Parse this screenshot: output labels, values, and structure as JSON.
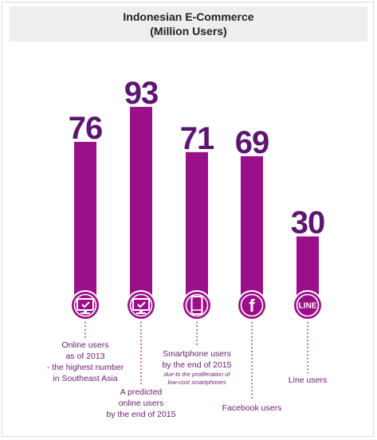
{
  "title": "Indonesian E-Commerce",
  "subtitle": "(Million Users)",
  "colors": {
    "bar": "#9b0f8a",
    "value": "#5c1670",
    "text": "#6a1b6d",
    "icon_ring": "#9b0f8a"
  },
  "chart_data": {
    "type": "bar",
    "title": "Indonesian E-Commerce",
    "subtitle": "(Million Users)",
    "categories": [
      "Online users as of 2013 - the highest number in Southeast Asia",
      "A predicted online users by the end of 2015",
      "Smartphone users by the end of 2015",
      "Facebook users",
      "Line users"
    ],
    "values": [
      76,
      93,
      71,
      69,
      30
    ],
    "unit": "Million Users"
  },
  "bars": [
    {
      "value": "76",
      "icon": "monitor-icon",
      "caption": [
        "Online users",
        "as of 2013",
        "- the highest number",
        "in Southeast Asia"
      ]
    },
    {
      "value": "93",
      "icon": "monitor-icon",
      "caption": [
        "A predicted",
        "online users",
        "by the end of 2015"
      ]
    },
    {
      "value": "71",
      "icon": "smartphone-icon",
      "caption": [
        "Smartphone users",
        "by the end of 2015"
      ],
      "note": [
        "due to the proliferation of",
        "low-cost smartphones"
      ]
    },
    {
      "value": "69",
      "icon": "facebook-icon",
      "icon_text": "f",
      "caption": [
        "Facebook users"
      ]
    },
    {
      "value": "30",
      "icon": "line-icon",
      "icon_text": "LINE",
      "caption": [
        "Line users"
      ]
    }
  ]
}
